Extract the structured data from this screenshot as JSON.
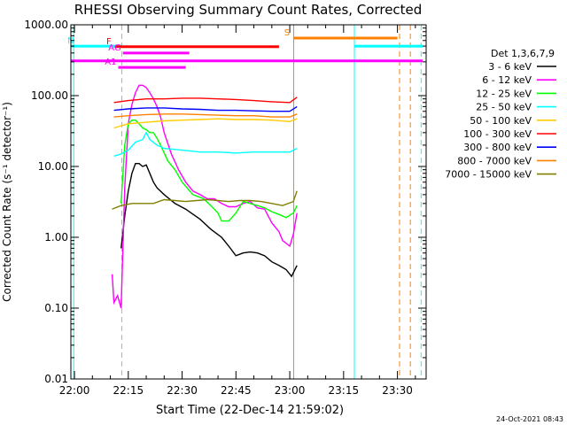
{
  "chart_data": {
    "type": "line",
    "title": "RHESSI Observing Summary Count Rates, Corrected",
    "xlabel": "Start Time (22-Dec-14 21:59:02)",
    "ylabel": "Corrected Count Rate (s⁻¹ detector⁻¹)",
    "x_unit": "minutes after 22:00",
    "x_range": [
      -1,
      98
    ],
    "y_scale": "log",
    "y_range": [
      0.01,
      1000
    ],
    "x_ticks": [
      {
        "x": 0,
        "label": "22:00"
      },
      {
        "x": 15,
        "label": "22:15"
      },
      {
        "x": 30,
        "label": "22:30"
      },
      {
        "x": 45,
        "label": "22:45"
      },
      {
        "x": 60,
        "label": "23:00"
      },
      {
        "x": 75,
        "label": "23:15"
      },
      {
        "x": 90,
        "label": "23:30"
      }
    ],
    "y_ticks": [
      {
        "y": 0.01,
        "label": "0.01"
      },
      {
        "y": 0.1,
        "label": "0.10"
      },
      {
        "y": 1,
        "label": "1.00"
      },
      {
        "y": 10,
        "label": "10.00"
      },
      {
        "y": 100,
        "label": "100.00"
      },
      {
        "y": 1000,
        "label": "1000.00"
      }
    ],
    "legend_title": "Det 1,3,6,7,9",
    "legend_position": "right",
    "series": [
      {
        "name": "3 - 6 keV",
        "color": "#000000",
        "points": [
          [
            13,
            0.7
          ],
          [
            14,
            2
          ],
          [
            15,
            4.5
          ],
          [
            16,
            8
          ],
          [
            17,
            11
          ],
          [
            18,
            11
          ],
          [
            19,
            10
          ],
          [
            20,
            10.5
          ],
          [
            21,
            8
          ],
          [
            22,
            6
          ],
          [
            23,
            5
          ],
          [
            25,
            4
          ],
          [
            28,
            3
          ],
          [
            31,
            2.5
          ],
          [
            35,
            1.8
          ],
          [
            38,
            1.3
          ],
          [
            41,
            1
          ],
          [
            43,
            0.75
          ],
          [
            45,
            0.55
          ],
          [
            47,
            0.6
          ],
          [
            49,
            0.62
          ],
          [
            51,
            0.6
          ],
          [
            53,
            0.55
          ],
          [
            55,
            0.45
          ],
          [
            57,
            0.4
          ],
          [
            59,
            0.35
          ],
          [
            60.5,
            0.28
          ],
          [
            62,
            0.4
          ]
        ]
      },
      {
        "name": "6 - 12 keV",
        "color": "#ff00ff",
        "points": [
          [
            10.5,
            0.3
          ],
          [
            11,
            0.12
          ],
          [
            12,
            0.15
          ],
          [
            13,
            0.1
          ],
          [
            14,
            5
          ],
          [
            15,
            40
          ],
          [
            16,
            75
          ],
          [
            17,
            110
          ],
          [
            18,
            140
          ],
          [
            19,
            140
          ],
          [
            20,
            130
          ],
          [
            21,
            110
          ],
          [
            22,
            90
          ],
          [
            23,
            70
          ],
          [
            24,
            50
          ],
          [
            25,
            30
          ],
          [
            27,
            15
          ],
          [
            29,
            9
          ],
          [
            31,
            6
          ],
          [
            33,
            4.5
          ],
          [
            35,
            4
          ],
          [
            37,
            3.5
          ],
          [
            39,
            3.5
          ],
          [
            41,
            3
          ],
          [
            43,
            2.7
          ],
          [
            45,
            2.7
          ],
          [
            47,
            3
          ],
          [
            49,
            3.2
          ],
          [
            51,
            2.6
          ],
          [
            53,
            2.5
          ],
          [
            55,
            1.6
          ],
          [
            57,
            1.2
          ],
          [
            58,
            0.9
          ],
          [
            60,
            0.75
          ],
          [
            61,
            1.1
          ],
          [
            62,
            2.2
          ]
        ]
      },
      {
        "name": "12 - 25 keV",
        "color": "#00ff00",
        "points": [
          [
            13,
            3
          ],
          [
            14,
            20
          ],
          [
            15,
            40
          ],
          [
            16,
            45
          ],
          [
            17,
            45
          ],
          [
            18,
            40
          ],
          [
            19,
            35
          ],
          [
            20,
            33
          ],
          [
            21,
            30
          ],
          [
            22,
            30
          ],
          [
            23,
            25
          ],
          [
            24,
            20
          ],
          [
            26,
            12
          ],
          [
            28,
            9
          ],
          [
            30,
            6
          ],
          [
            33,
            4
          ],
          [
            36,
            3.5
          ],
          [
            38,
            2.8
          ],
          [
            40,
            2.2
          ],
          [
            41,
            1.7
          ],
          [
            43,
            1.7
          ],
          [
            45,
            2.2
          ],
          [
            47,
            3.2
          ],
          [
            49,
            3
          ],
          [
            51,
            2.8
          ],
          [
            53,
            2.6
          ],
          [
            55,
            2.3
          ],
          [
            57,
            2.1
          ],
          [
            59,
            1.9
          ],
          [
            61,
            2.2
          ],
          [
            62,
            2.8
          ]
        ]
      },
      {
        "name": "25 - 50 keV",
        "color": "#00ffff",
        "points": [
          [
            11,
            14
          ],
          [
            13,
            15
          ],
          [
            15,
            17
          ],
          [
            17,
            22
          ],
          [
            19,
            24
          ],
          [
            20,
            30
          ],
          [
            21,
            24
          ],
          [
            23,
            20
          ],
          [
            25,
            18
          ],
          [
            30,
            17
          ],
          [
            35,
            16
          ],
          [
            40,
            16
          ],
          [
            45,
            15.5
          ],
          [
            50,
            16
          ],
          [
            55,
            16
          ],
          [
            60,
            16
          ],
          [
            62,
            18
          ]
        ]
      },
      {
        "name": "50 - 100 keV",
        "color": "#ffcc00",
        "points": [
          [
            11,
            35
          ],
          [
            15,
            40
          ],
          [
            20,
            42
          ],
          [
            25,
            44
          ],
          [
            30,
            45
          ],
          [
            35,
            46
          ],
          [
            40,
            47
          ],
          [
            45,
            46
          ],
          [
            50,
            46
          ],
          [
            55,
            45
          ],
          [
            60,
            43
          ],
          [
            62,
            47
          ]
        ]
      },
      {
        "name": "100 - 300 keV",
        "color": "#ff0000",
        "points": [
          [
            11,
            80
          ],
          [
            15,
            85
          ],
          [
            20,
            90
          ],
          [
            25,
            90
          ],
          [
            30,
            92
          ],
          [
            35,
            92
          ],
          [
            40,
            90
          ],
          [
            45,
            88
          ],
          [
            50,
            85
          ],
          [
            55,
            82
          ],
          [
            60,
            80
          ],
          [
            62,
            95
          ]
        ]
      },
      {
        "name": "300 - 800 keV",
        "color": "#0000ff",
        "points": [
          [
            11,
            62
          ],
          [
            15,
            65
          ],
          [
            20,
            67
          ],
          [
            25,
            67
          ],
          [
            30,
            65
          ],
          [
            35,
            64
          ],
          [
            40,
            62
          ],
          [
            45,
            62
          ],
          [
            50,
            61
          ],
          [
            55,
            60
          ],
          [
            60,
            60
          ],
          [
            62,
            70
          ]
        ]
      },
      {
        "name": "800 - 7000 keV",
        "color": "#ff8000",
        "points": [
          [
            11,
            50
          ],
          [
            15,
            52
          ],
          [
            20,
            54
          ],
          [
            25,
            55
          ],
          [
            30,
            55
          ],
          [
            35,
            54
          ],
          [
            40,
            53
          ],
          [
            45,
            52
          ],
          [
            50,
            52
          ],
          [
            55,
            50
          ],
          [
            60,
            50
          ],
          [
            62,
            55
          ]
        ]
      },
      {
        "name": "7000 - 15000 keV",
        "color": "#808000",
        "points": [
          [
            10.5,
            2.5
          ],
          [
            13,
            2.8
          ],
          [
            16,
            3
          ],
          [
            19,
            3
          ],
          [
            22,
            3
          ],
          [
            25,
            3.4
          ],
          [
            28,
            3.3
          ],
          [
            31,
            3.2
          ],
          [
            34,
            3.3
          ],
          [
            37,
            3.4
          ],
          [
            40,
            3.3
          ],
          [
            43,
            3.2
          ],
          [
            46,
            3.3
          ],
          [
            49,
            3.3
          ],
          [
            52,
            3.2
          ],
          [
            55,
            3
          ],
          [
            58,
            2.8
          ],
          [
            61,
            3.2
          ],
          [
            62,
            4.5
          ]
        ]
      }
    ],
    "flag_bars": [
      {
        "label": "N",
        "color": "#00ffff",
        "segments": [
          [
            -1,
            13.2
          ],
          [
            78,
            97
          ]
        ],
        "y": 500
      },
      {
        "label": "S",
        "color": "#ff8000",
        "segments": [
          [
            61,
            90
          ]
        ],
        "y": 650
      },
      {
        "label": "F",
        "color": "#ff0000",
        "segments": [
          [
            11.3,
            57
          ]
        ],
        "y": 490
      },
      {
        "label": "",
        "color": "#ff00ff",
        "segments": [
          [
            -1,
            97
          ]
        ],
        "y": 310
      },
      {
        "label": "AG",
        "color": "#ff00ff",
        "segments": [
          [
            13.5,
            32
          ]
        ],
        "y": 400
      },
      {
        "label": "A1",
        "color": "#ff00ff",
        "segments": [
          [
            12.2,
            31
          ]
        ],
        "y": 250
      }
    ],
    "vertical_lines": [
      {
        "x": -0.2,
        "color": "#00ffff",
        "style": "solid"
      },
      {
        "x": 13.2,
        "color": "#00ffff",
        "style": "dashed"
      },
      {
        "x": 61.1,
        "color": "#ff8000",
        "style": "solid"
      },
      {
        "x": 78,
        "color": "#00ffff",
        "style": "solid"
      },
      {
        "x": 90.6,
        "color": "#ff8000",
        "style": "dashed"
      },
      {
        "x": 93.6,
        "color": "#ff8000",
        "style": "dashed"
      },
      {
        "x": 96.6,
        "color": "#00ffff",
        "style": "dashed"
      }
    ],
    "footer_date": "24-Oct-2021 08:43"
  }
}
